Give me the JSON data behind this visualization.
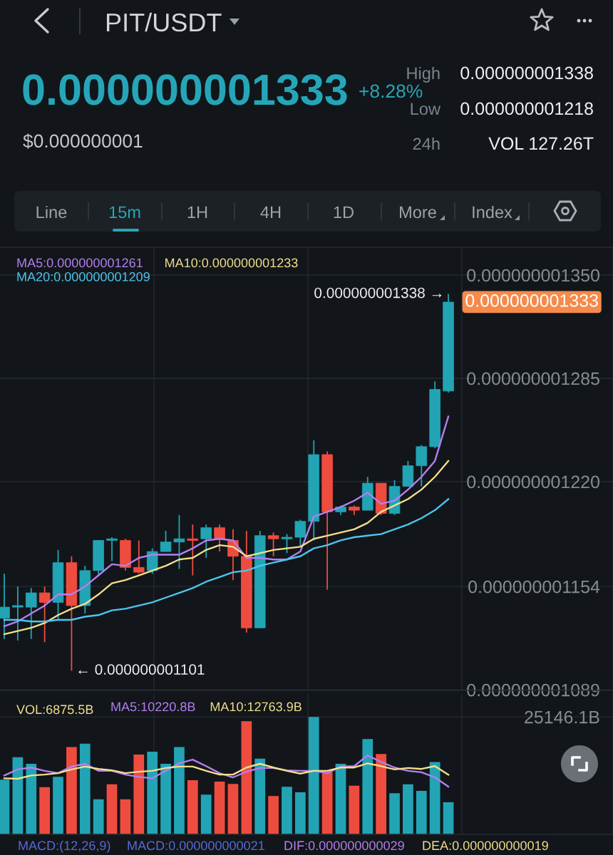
{
  "chart_data": [
    {
      "type": "other",
      "title": "PIT/USDT",
      "annotations": [
        "0.000000001333",
        "+8.28%",
        "$0.000000001",
        "High",
        "0.000000001338",
        "Low",
        "0.000000001218",
        "24h",
        "VOL 127.26T",
        "Line",
        "15m",
        "1H",
        "4H",
        "1D",
        "More",
        "Index"
      ]
    },
    {
      "type": "candlestick",
      "categories": [
        null,
        null,
        null,
        null,
        null,
        null,
        null,
        null,
        null,
        null,
        null,
        null,
        null,
        null,
        null,
        null,
        null,
        null,
        null,
        null,
        null,
        null,
        null,
        null,
        null,
        null,
        null,
        null,
        null,
        null,
        null,
        null,
        null,
        null
      ],
      "ohlc": [
        [
          1.134e-09,
          1.162e-09,
          1.121e-09,
          1.141e-09
        ],
        [
          1.141e-09,
          1.154e-09,
          1.12e-09,
          1.142e-09
        ],
        [
          1.141e-09,
          1.153e-09,
          1.121e-09,
          1.15e-09
        ],
        [
          1.15e-09,
          1.154e-09,
          1.119e-09,
          1.144e-09
        ],
        [
          1.144e-09,
          1.177e-09,
          1.133e-09,
          1.169e-09
        ],
        [
          1.169e-09,
          1.173e-09,
          1.101e-09,
          1.142e-09
        ],
        [
          1.142e-09,
          1.167e-09,
          1.137e-09,
          1.164e-09
        ],
        [
          1.164e-09,
          1.183e-09,
          1.161e-09,
          1.183e-09
        ],
        [
          1.183e-09,
          1.185e-09,
          1.17e-09,
          1.184e-09
        ],
        [
          1.183e-09,
          1.184e-09,
          1.164e-09,
          1.166e-09
        ],
        [
          1.166e-09,
          1.183e-09,
          1.162e-09,
          1.163e-09
        ],
        [
          1.164e-09,
          1.178e-09,
          1.162e-09,
          1.176e-09
        ],
        [
          1.176e-09,
          1.189e-09,
          1.176e-09,
          1.182e-09
        ],
        [
          1.182e-09,
          1.199e-09,
          1.165e-09,
          1.184e-09
        ],
        [
          1.184e-09,
          1.193e-09,
          1.161e-09,
          1.183e-09
        ],
        [
          1.184e-09,
          1.193e-09,
          1.172e-09,
          1.191e-09
        ],
        [
          1.191e-09,
          1.193e-09,
          1.176e-09,
          1.184e-09
        ],
        [
          1.183e-09,
          1.19e-09,
          1.158e-09,
          1.173e-09
        ],
        [
          1.173e-09,
          1.189e-09,
          1.125e-09,
          1.128e-09
        ],
        [
          1.128e-09,
          1.189e-09,
          1.128e-09,
          1.186e-09
        ],
        [
          1.186e-09,
          1.188e-09,
          1.173e-09,
          1.184e-09
        ],
        [
          1.184e-09,
          1.187e-09,
          1.175e-09,
          1.185e-09
        ],
        [
          1.185e-09,
          1.196e-09,
          1.179e-09,
          1.195e-09
        ],
        [
          1.195e-09,
          1.246e-09,
          1.183e-09,
          1.237e-09
        ],
        [
          1.237e-09,
          1.239e-09,
          1.152e-09,
          1.201e-09
        ],
        [
          1.201e-09,
          1.205e-09,
          1.199e-09,
          1.204e-09
        ],
        [
          1.204e-09,
          1.205e-09,
          1.199e-09,
          1.202e-09
        ],
        [
          1.202e-09,
          1.223e-09,
          1.202e-09,
          1.219e-09
        ],
        [
          1.219e-09,
          1.219e-09,
          1.199e-09,
          1.2e-09
        ],
        [
          1.2e-09,
          1.221e-09,
          1.199e-09,
          1.217e-09
        ],
        [
          1.217e-09,
          1.233e-09,
          1.217e-09,
          1.23e-09
        ],
        [
          1.23e-09,
          1.243e-09,
          1.217e-09,
          1.242e-09
        ],
        [
          1.242e-09,
          1.283e-09,
          1.241e-09,
          1.278e-09
        ],
        [
          1.277e-09,
          1.338e-09,
          1.276e-09,
          1.333e-09
        ]
      ],
      "colors": [
        "#22a4b5",
        "#22a4b5",
        "#22a4b5",
        "#ef4c40",
        "#22a4b5",
        "#ef4c40",
        "#22a4b5",
        "#22a4b5",
        "#22a4b5",
        "#ef4c40",
        "#ef4c40",
        "#22a4b5",
        "#22a4b5",
        "#22a4b5",
        "#ef4c40",
        "#22a4b5",
        "#ef4c40",
        "#ef4c40",
        "#ef4c40",
        "#22a4b5",
        "#ef4c40",
        "#22a4b5",
        "#22a4b5",
        "#22a4b5",
        "#ef4c40",
        "#22a4b5",
        "#ef4c40",
        "#22a4b5",
        "#ef4c40",
        "#22a4b5",
        "#22a4b5",
        "#22a4b5",
        "#22a4b5",
        "#22a4b5"
      ],
      "series": [
        {
          "name": "MA5:0.000000001261",
          "type": "line",
          "color": "#b57ff2",
          "values": [
            1.129e-09,
            1.132e-09,
            1.137e-09,
            1.142e-09,
            1.149e-09,
            1.149e-09,
            1.154e-09,
            1.161e-09,
            1.168e-09,
            1.167e-09,
            1.172e-09,
            1.174e-09,
            1.174e-09,
            1.174e-09,
            1.178e-09,
            1.183e-09,
            1.184e-09,
            1.183e-09,
            1.172e-09,
            1.172e-09,
            1.171e-09,
            1.171e-09,
            1.176e-09,
            1.198e-09,
            1.201e-09,
            1.204e-09,
            1.208e-09,
            1.213e-09,
            1.206e-09,
            1.208e-09,
            1.215e-09,
            1.223e-09,
            1.233e-09,
            1.261e-09
          ]
        },
        {
          "name": "MA10:0.000000001233",
          "type": "line",
          "color": "#f2df8c",
          "values": [
            1.124e-09,
            1.126e-09,
            1.128e-09,
            1.131e-09,
            1.136e-09,
            1.14e-09,
            1.143e-09,
            1.149e-09,
            1.156e-09,
            1.158e-09,
            1.161e-09,
            1.164e-09,
            1.167e-09,
            1.171e-09,
            1.172e-09,
            1.177e-09,
            1.18e-09,
            1.179e-09,
            1.173e-09,
            1.175e-09,
            1.177e-09,
            1.178e-09,
            1.179e-09,
            1.184e-09,
            1.186e-09,
            1.188e-09,
            1.19e-09,
            1.194e-09,
            1.201e-09,
            1.205e-09,
            1.209e-09,
            1.215e-09,
            1.223e-09,
            1.233e-09
          ]
        },
        {
          "name": "MA20:0.000000001209",
          "type": "line",
          "color": "#4cc6ef",
          "values": [
            1.133e-09,
            1.133e-09,
            1.132e-09,
            1.132e-09,
            1.133e-09,
            1.133e-09,
            1.135e-09,
            1.136e-09,
            1.139e-09,
            1.14e-09,
            1.142e-09,
            1.144e-09,
            1.147e-09,
            1.15e-09,
            1.153e-09,
            1.157e-09,
            1.16e-09,
            1.163e-09,
            1.164e-09,
            1.167e-09,
            1.169e-09,
            1.171e-09,
            1.173e-09,
            1.178e-09,
            1.18e-09,
            1.183e-09,
            1.185e-09,
            1.186e-09,
            1.187e-09,
            1.19e-09,
            1.193e-09,
            1.197e-09,
            1.202e-09,
            1.209e-09
          ]
        }
      ],
      "ylim": [
        1.0886e-09,
        1.3675e-09
      ],
      "yticks": [
        {
          "value": 1.35e-09,
          "label": "0.000000001350"
        },
        {
          "value": 1.285e-09,
          "label": "0.000000001285"
        },
        {
          "value": 1.22e-09,
          "label": "0.000000001220"
        },
        {
          "value": 1.154e-09,
          "label": "0.000000001154"
        },
        {
          "value": 1.089e-09,
          "label": "0.000000001089"
        }
      ],
      "grid": "y",
      "legend": "top left",
      "tick_labels": "y",
      "annotations": [
        "0.000000001338 →",
        "← 0.000000001101",
        "0.000000001333"
      ]
    },
    {
      "type": "bar",
      "categories": [
        null,
        null,
        null,
        null,
        null,
        null,
        null,
        null,
        null,
        null,
        null,
        null,
        null,
        null,
        null,
        null,
        null,
        null,
        null,
        null,
        null,
        null,
        null,
        null,
        null,
        null,
        null,
        null,
        null,
        null,
        null,
        null,
        null,
        null
      ],
      "series": [
        {
          "type": "bar",
          "values": [
            11700,
            16500,
            15100,
            10100,
            12300,
            18700,
            19400,
            7500,
            10700,
            7500,
            17100,
            17700,
            15100,
            18700,
            11600,
            8500,
            11300,
            10800,
            24200,
            16200,
            8200,
            10200,
            9000,
            25146.1,
            13400,
            15100,
            10400,
            20400,
            17200,
            8800,
            10700,
            9300,
            15500,
            6875.5
          ],
          "colors": [
            "#22a4b5",
            "#22a4b5",
            "#22a4b5",
            "#ef4c40",
            "#22a4b5",
            "#ef4c40",
            "#22a4b5",
            "#22a4b5",
            "#ef4c40",
            "#ef4c40",
            "#ef4c40",
            "#22a4b5",
            "#22a4b5",
            "#22a4b5",
            "#ef4c40",
            "#22a4b5",
            "#ef4c40",
            "#ef4c40",
            "#ef4c40",
            "#22a4b5",
            "#ef4c40",
            "#22a4b5",
            "#22a4b5",
            "#22a4b5",
            "#ef4c40",
            "#22a4b5",
            "#ef4c40",
            "#22a4b5",
            "#ef4c40",
            "#22a4b5",
            "#22a4b5",
            "#22a4b5",
            "#22a4b5",
            "#22a4b5"
          ]
        },
        {
          "name": "MA5:10220.8B",
          "type": "line",
          "color": "#b57ff2",
          "values": [
            12600,
            13900,
            14300,
            13600,
            13100,
            14500,
            15100,
            13600,
            13600,
            12800,
            12300,
            12000,
            13600,
            15200,
            16000,
            14600,
            13100,
            12200,
            13400,
            14200,
            14200,
            13700,
            13600,
            13600,
            13100,
            14500,
            14600,
            16900,
            15500,
            14300,
            13600,
            13300,
            12200,
            10220.8
          ]
        },
        {
          "name": "MA10:12763.9B",
          "type": "line",
          "color": "#f2df8c",
          "values": [
            12000,
            11900,
            12600,
            12800,
            13100,
            13900,
            14500,
            14000,
            13700,
            13100,
            13400,
            13600,
            14200,
            14500,
            14500,
            13600,
            12800,
            12800,
            14300,
            15100,
            14300,
            13600,
            13000,
            13600,
            13600,
            14300,
            14300,
            15200,
            14600,
            13900,
            14200,
            14000,
            14600,
            12763.9
          ]
        }
      ],
      "ylim": [
        0,
        30200
      ],
      "yticks": [
        {
          "value": 25146.1,
          "label": "25146.1B"
        }
      ],
      "grid": "y",
      "legend": "top left",
      "tick_labels": "y",
      "annotations": [
        "VOL:6875.5B"
      ]
    },
    {
      "type": "other",
      "annotations": [
        "MACD:(12,26,9)",
        "MACD:0.000000000021",
        "DIF:0.000000000029",
        "DEA:0.000000000019"
      ]
    }
  ]
}
